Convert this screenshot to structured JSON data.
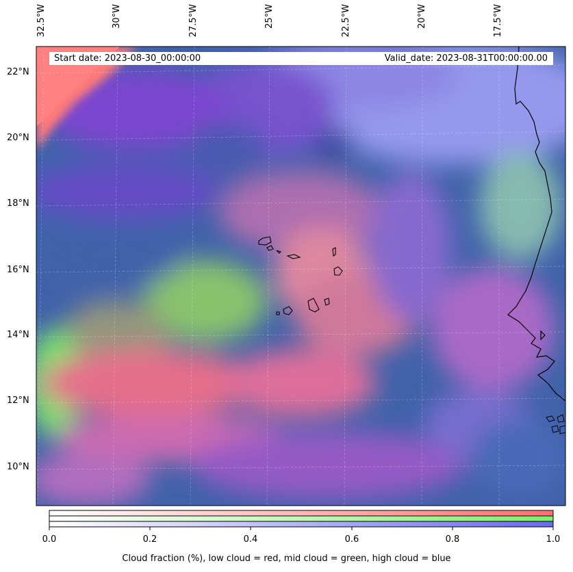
{
  "map": {
    "header": {
      "start_date": "Start date: 2023-08-30_00:00:00",
      "valid_date": "Valid_date: 2023-08-31T00:00:00.00"
    },
    "lon_labels": [
      "32.5°W",
      "30°W",
      "27.5°W",
      "25°W",
      "22.5°W",
      "20°W",
      "17.5°W"
    ],
    "lat_labels": [
      "22°N",
      "20°N",
      "18°N",
      "16°N",
      "14°N",
      "12°N",
      "10°N"
    ],
    "colors": {
      "low_cloud": "#ff7070",
      "mid_cloud": "#7de86a",
      "high_cloud": "#6a6af0",
      "clear": "#3f62a8"
    }
  },
  "colorbar": {
    "ticks": [
      "0.0",
      "0.2",
      "0.4",
      "0.6",
      "0.8",
      "1.0"
    ],
    "title": "Cloud fraction (%), low cloud = red, mid cloud = green, high cloud = blue"
  }
}
